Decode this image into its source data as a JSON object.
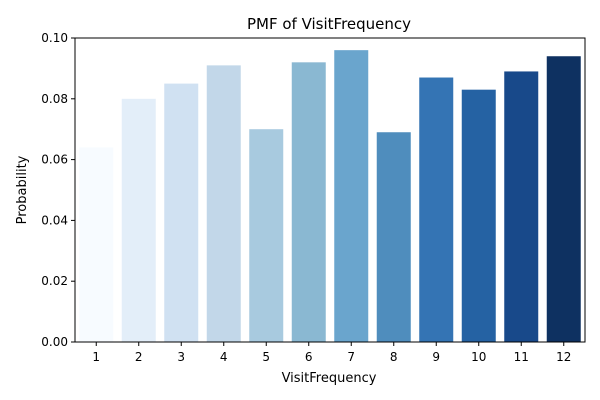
{
  "chart_data": {
    "type": "bar",
    "title": "PMF of VisitFrequency",
    "xlabel": "VisitFrequency",
    "ylabel": "Probability",
    "categories": [
      "1",
      "2",
      "3",
      "4",
      "5",
      "6",
      "7",
      "8",
      "9",
      "10",
      "11",
      "12"
    ],
    "values": [
      0.064,
      0.08,
      0.085,
      0.091,
      0.07,
      0.092,
      0.096,
      0.069,
      0.087,
      0.083,
      0.089,
      0.094
    ],
    "colors": [
      "#f7fbff",
      "#e3eef9",
      "#d0e1f2",
      "#c2d7e9",
      "#a8cadf",
      "#8ab8d2",
      "#6aa5cd",
      "#4f8dbd",
      "#3474b4",
      "#2562a3",
      "#18498a",
      "#0e3161"
    ],
    "ylim": [
      0,
      0.1
    ],
    "yticks": [
      0.0,
      0.02,
      0.04,
      0.06,
      0.08,
      0.1
    ],
    "ytick_labels": [
      "0.00",
      "0.02",
      "0.04",
      "0.06",
      "0.08",
      "0.10"
    ],
    "grid": false,
    "legend": "none"
  }
}
